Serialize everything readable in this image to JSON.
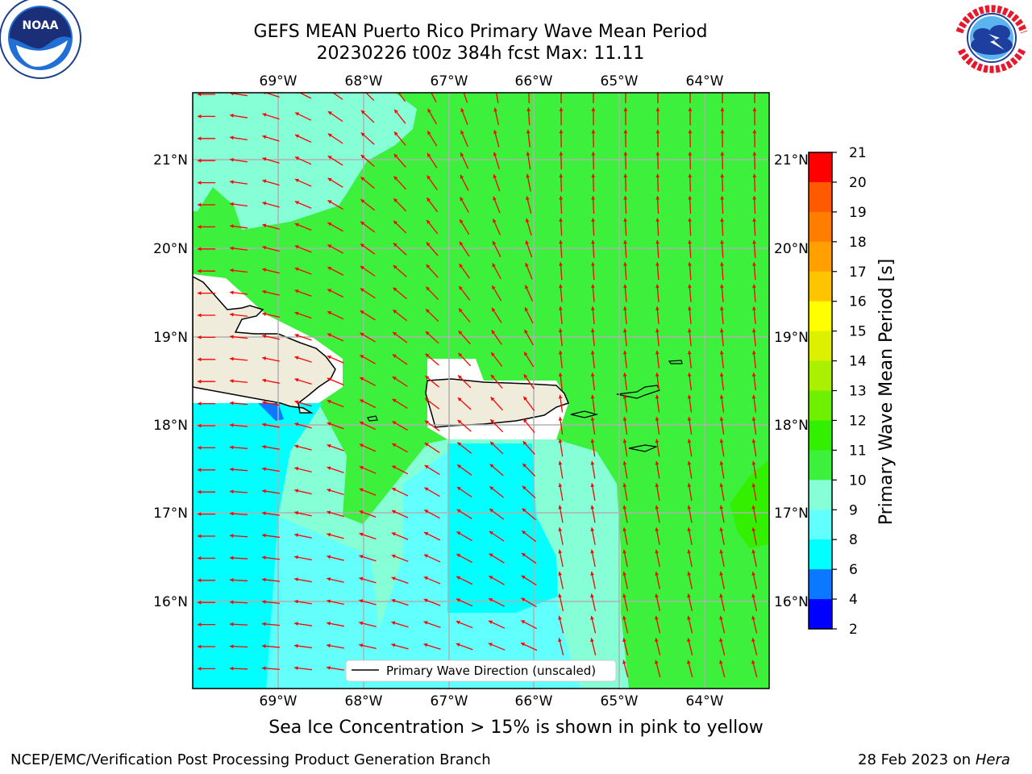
{
  "header": {
    "title_line1": "GEFS MEAN Puerto Rico Primary Wave Mean Period",
    "title_line2": "20230226 t00z 384h fcst   Max: 11.11"
  },
  "logos": {
    "left_name": "NOAA",
    "right_name": "NATIONAL WEATHER SERVICE"
  },
  "map": {
    "lon_labels": [
      "69°W",
      "68°W",
      "67°W",
      "66°W",
      "65°W",
      "64°W"
    ],
    "lat_labels": [
      "21°N",
      "20°N",
      "19°N",
      "18°N",
      "17°N",
      "16°N"
    ],
    "legend_label": "Primary Wave Direction (unscaled)",
    "arrow_color": "#ff0000",
    "land_color": "#efecdc",
    "gridlines": true
  },
  "colorbar": {
    "label": "Primary Wave Mean Period [s]",
    "ticks": [
      "21",
      "20",
      "19",
      "18",
      "17",
      "16",
      "15",
      "14",
      "13",
      "12",
      "11",
      "10",
      "9",
      "8",
      "6",
      "4",
      "2"
    ],
    "colors": [
      "#ff0000",
      "#ff2a00",
      "#ff5a00",
      "#ff7e00",
      "#ff9f00",
      "#ffc400",
      "#ffff00",
      "#dcf000",
      "#aaf000",
      "#6ef000",
      "#32f000",
      "#3cf03c",
      "#86ffd6",
      "#62ffff",
      "#00ffff",
      "#0a78ff",
      "#0000ff"
    ]
  },
  "notes": {
    "sea_ice": "Sea Ice Concentration > 15% is shown in pink to yellow"
  },
  "footer": {
    "left": "NCEP/EMC/Verification Post Processing Product Generation Branch",
    "right_prefix": "28 Feb 2023 on ",
    "right_italic": "Hera"
  }
}
